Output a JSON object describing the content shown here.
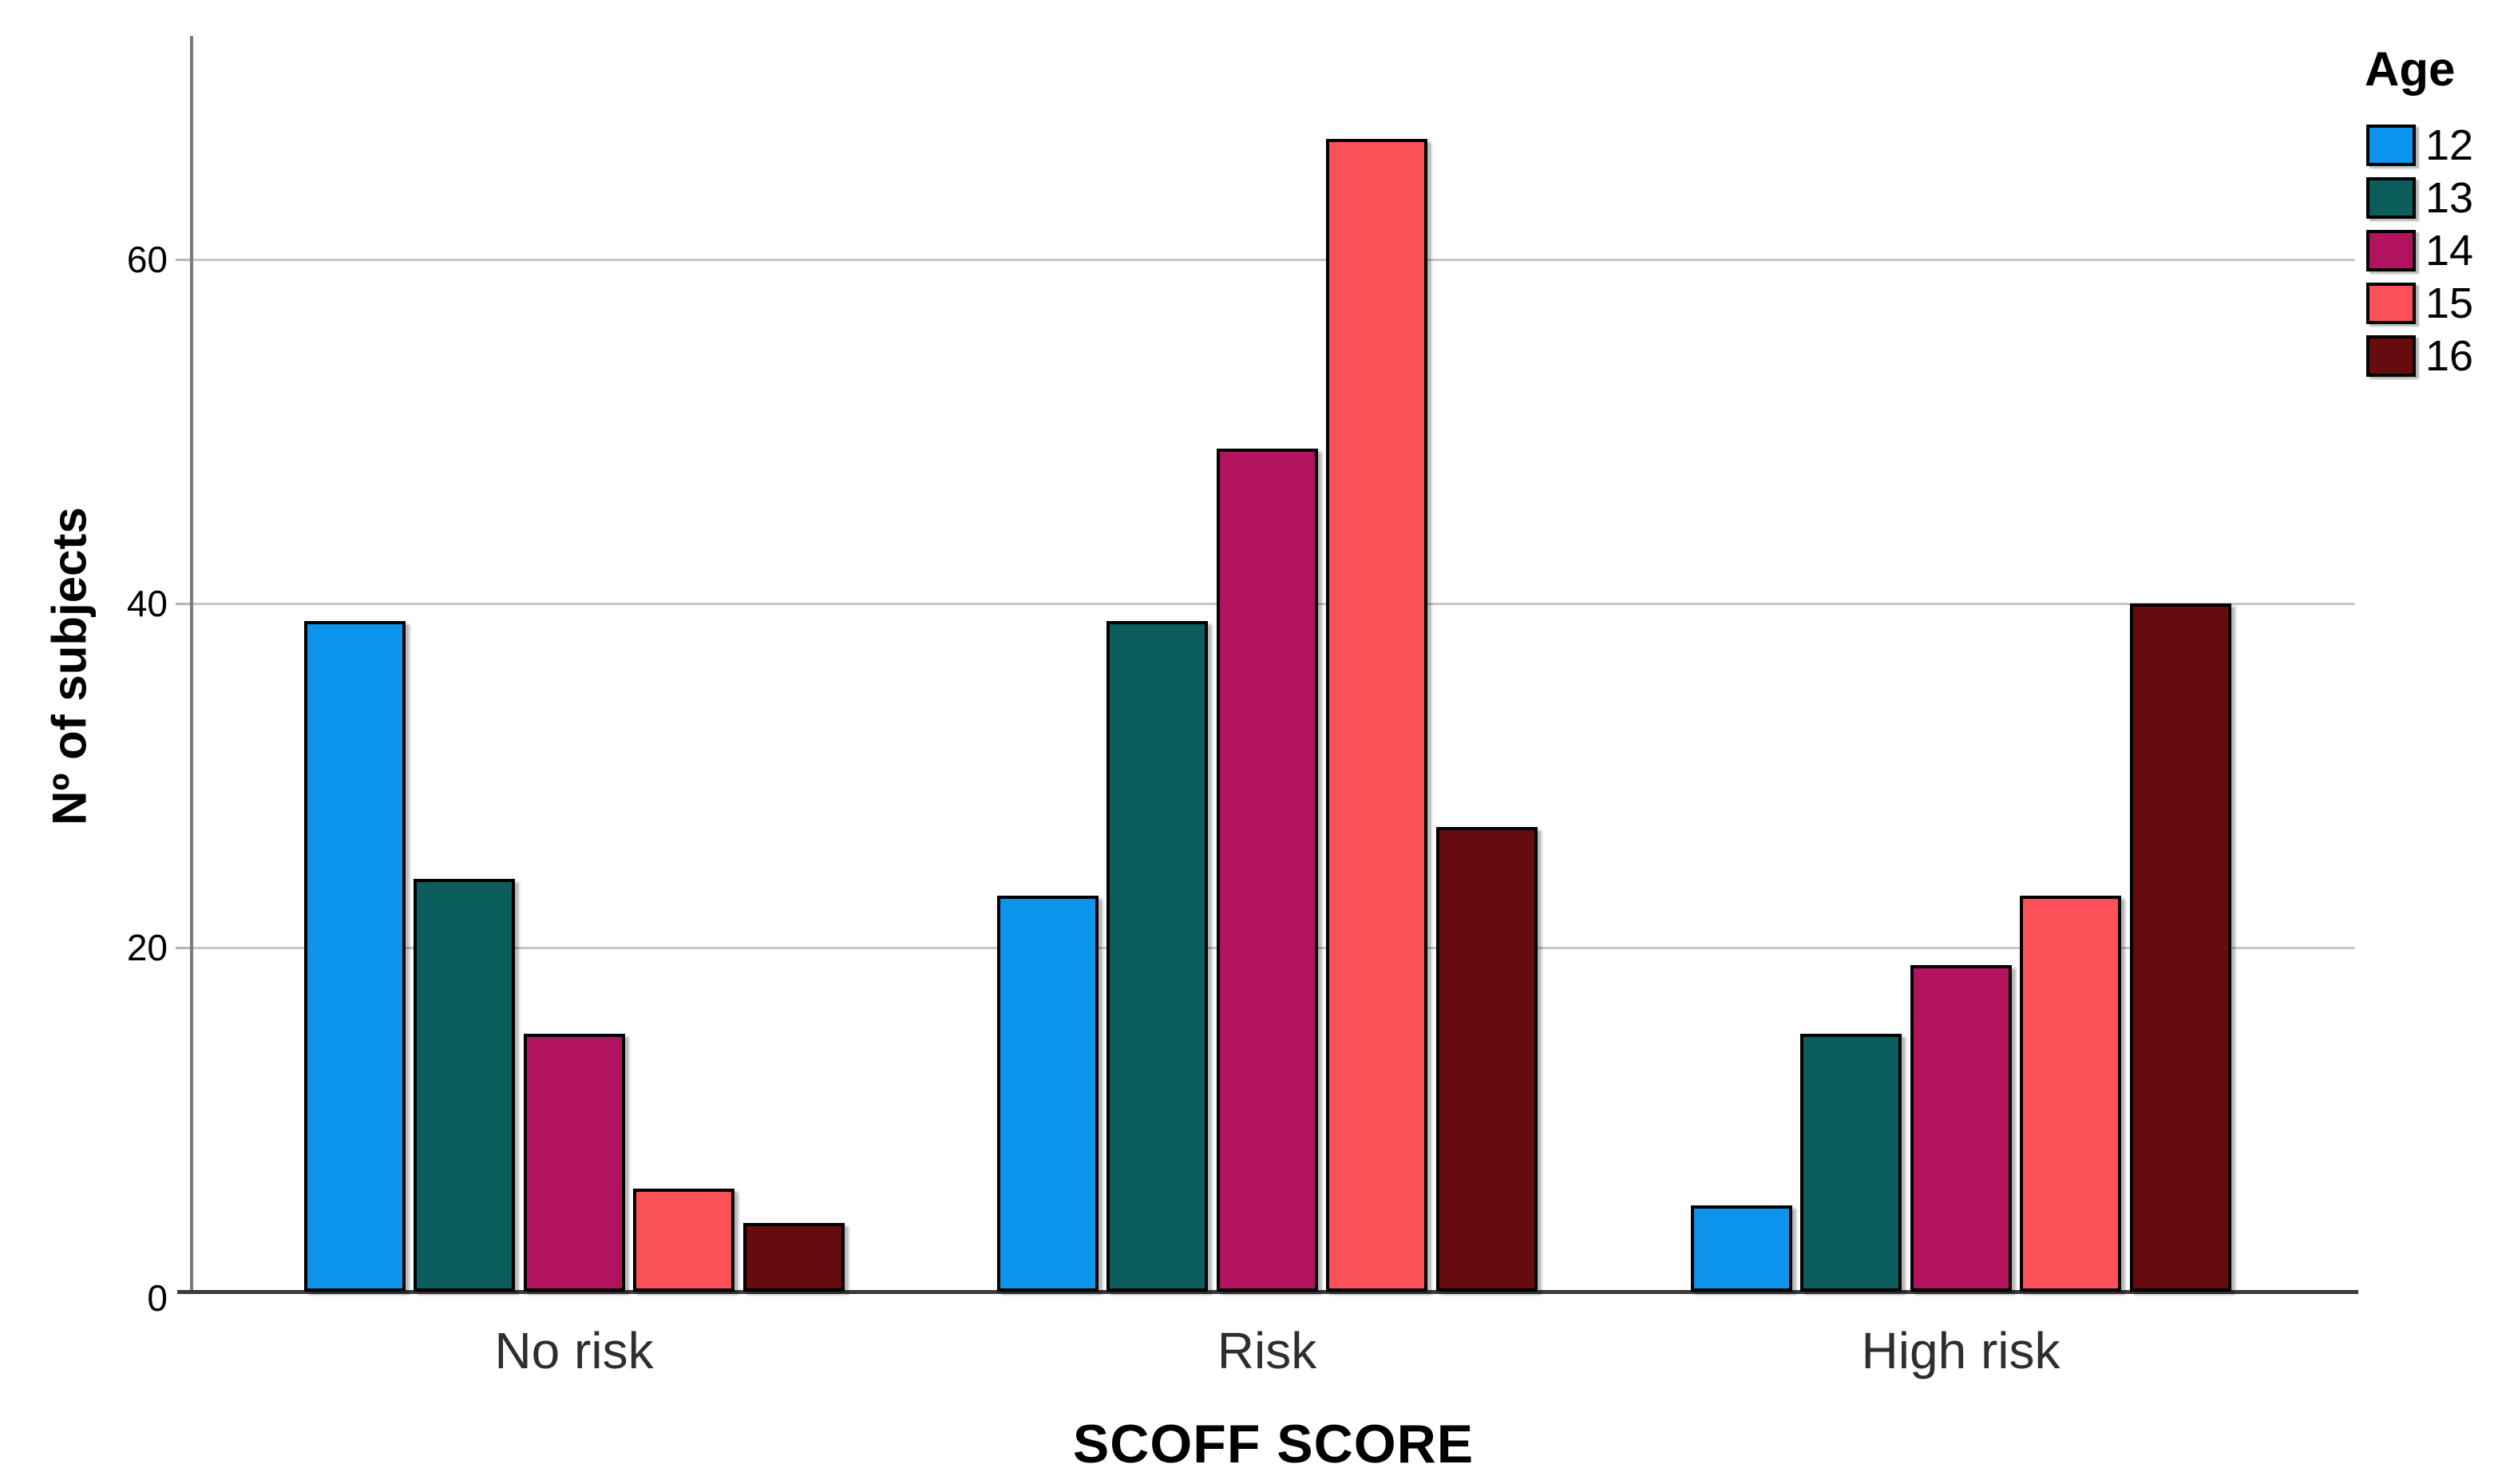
{
  "chart_data": {
    "type": "bar",
    "title": "",
    "xlabel": "SCOFF SCORE",
    "ylabel": "Nº of subjects",
    "categories": [
      "No risk",
      "Risk",
      "High risk"
    ],
    "series": [
      {
        "name": "12",
        "color": "#0d94ec",
        "values": [
          39,
          23,
          5
        ]
      },
      {
        "name": "13",
        "color": "#0b5e5b",
        "values": [
          24,
          39,
          15
        ]
      },
      {
        "name": "14",
        "color": "#b1135e",
        "values": [
          15,
          49,
          19
        ]
      },
      {
        "name": "15",
        "color": "#fb5058",
        "values": [
          6,
          67,
          23
        ]
      },
      {
        "name": "16",
        "color": "#660b0e",
        "values": [
          4,
          27,
          40
        ]
      }
    ],
    "legend_title": "Age",
    "legend_position": "top-right",
    "y_ticks": [
      0,
      20,
      40,
      60
    ],
    "ylim": [
      0,
      73
    ],
    "grid": true,
    "grid_color": "#c6c6c6",
    "bar_border_color": "#000000",
    "background_color": "#ffffff"
  }
}
